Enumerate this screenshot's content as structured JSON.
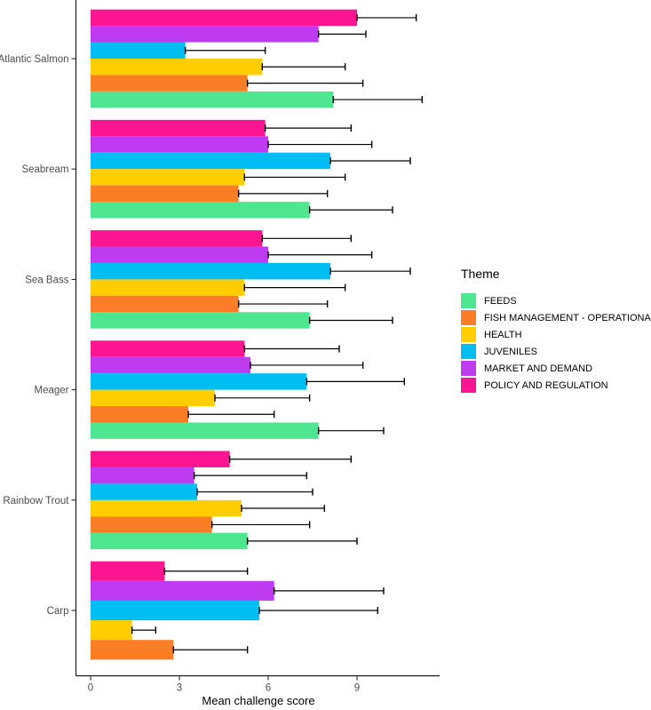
{
  "figure": {
    "xlabel": "Mean challenge score",
    "legend_title": "Theme"
  },
  "chart_data": {
    "type": "bar",
    "orientation": "horizontal",
    "title": "",
    "xlabel": "Mean challenge score",
    "ylabel": "",
    "x_ticks": [
      0,
      3,
      6,
      9
    ],
    "xlim": [
      0,
      11.8
    ],
    "grid": false,
    "error_bars": true,
    "legend_title": "Theme",
    "legend_position": "right",
    "axis_text_color": "#4d4d4d",
    "error_bar_color": "#000000",
    "categories": [
      "Atlantic Salmon",
      "Seabream",
      "Sea Bass",
      "Meager",
      "Rainbow Trout",
      "Carp"
    ],
    "series": [
      {
        "name": "FEEDS",
        "color": "#4ee690",
        "values": [
          8.2,
          7.4,
          7.4,
          7.7,
          5.3,
          null
        ],
        "upper": [
          11.2,
          10.2,
          10.2,
          9.9,
          9.0,
          null
        ]
      },
      {
        "name": "FISH MANAGEMENT - OPERATIONAL",
        "color": "#fb7e26",
        "values": [
          5.3,
          5.0,
          5.0,
          3.3,
          4.1,
          2.8
        ],
        "upper": [
          9.2,
          8.0,
          8.0,
          6.2,
          7.4,
          5.3
        ]
      },
      {
        "name": "HEALTH",
        "color": "#ffcd00",
        "values": [
          5.8,
          5.2,
          5.2,
          4.2,
          5.1,
          1.4
        ],
        "upper": [
          8.6,
          8.6,
          8.6,
          7.4,
          7.9,
          2.2
        ]
      },
      {
        "name": "JUVENILES",
        "color": "#00bef2",
        "values": [
          3.2,
          8.1,
          8.1,
          7.3,
          3.6,
          5.7
        ],
        "upper": [
          5.9,
          10.8,
          10.8,
          10.6,
          7.5,
          9.7
        ]
      },
      {
        "name": "MARKET AND DEMAND",
        "color": "#be3bf2",
        "values": [
          7.7,
          6.0,
          6.0,
          5.4,
          3.5,
          6.2
        ],
        "upper": [
          9.3,
          9.5,
          9.5,
          9.2,
          7.3,
          9.9
        ]
      },
      {
        "name": "POLICY AND REGULATION",
        "color": "#fb1590",
        "values": [
          9.0,
          5.9,
          5.8,
          5.2,
          4.7,
          2.5
        ],
        "upper": [
          11.0,
          8.8,
          8.8,
          8.4,
          8.8,
          5.3
        ]
      }
    ]
  }
}
